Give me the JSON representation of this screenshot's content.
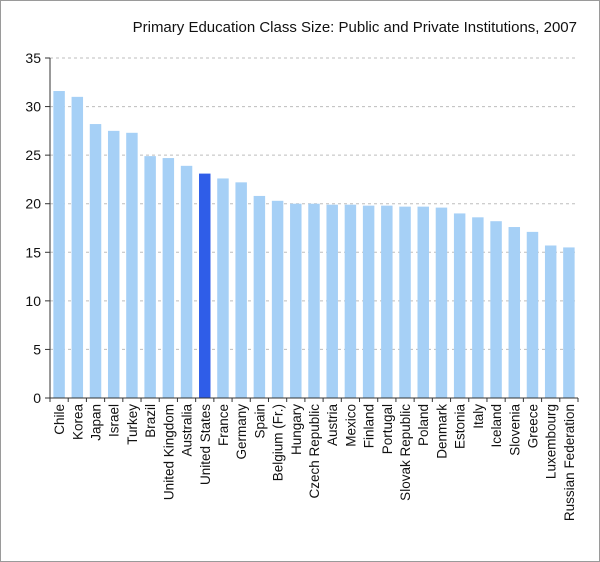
{
  "chart_data": {
    "type": "bar",
    "title": "Primary Education Class Size: Public and Private Institutions, 2007",
    "xlabel": "",
    "ylabel": "",
    "ylim": [
      0,
      35
    ],
    "yticks": [
      0,
      5,
      10,
      15,
      20,
      25,
      30,
      35
    ],
    "grid": true,
    "categories": [
      "Chile",
      "Korea",
      "Japan",
      "Israel",
      "Turkey",
      "Brazil",
      "United Kingdom",
      "Australia",
      "United States",
      "France",
      "Germany",
      "Spain",
      "Belgium (Fr.)",
      "Hungary",
      "Czech Republic",
      "Austria",
      "Mexico",
      "Finland",
      "Portugal",
      "Slovak Republic",
      "Poland",
      "Denmark",
      "Estonia",
      "Italy",
      "Iceland",
      "Slovenia",
      "Greece",
      "Luxembourg",
      "Russian Federation"
    ],
    "values": [
      31.6,
      31.0,
      28.2,
      27.5,
      27.3,
      24.9,
      24.7,
      23.9,
      23.1,
      22.6,
      22.2,
      20.8,
      20.3,
      20.0,
      20.0,
      19.9,
      19.9,
      19.8,
      19.8,
      19.7,
      19.7,
      19.6,
      19.0,
      18.6,
      18.2,
      17.6,
      17.1,
      15.7,
      15.5
    ],
    "highlight": "United States",
    "colors": {
      "bar": "#a6d0f6",
      "highlight": "#2f5de8",
      "grid": "#bdbdbd"
    }
  }
}
